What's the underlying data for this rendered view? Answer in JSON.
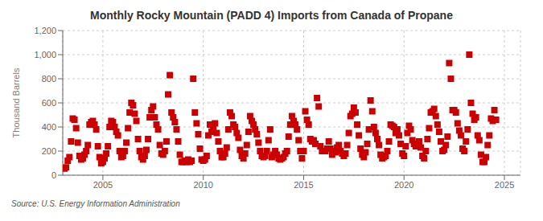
{
  "chart_data": {
    "type": "scatter",
    "title": "Monthly Rocky Mountain (PADD 4) Imports from Canada of Propane",
    "ylabel": "Thousand Barrels",
    "annotations": [
      "Source: U.S. Energy Information Administration"
    ],
    "color": "#cc0000",
    "marker": "square",
    "grid": true,
    "xlim": [
      2003.0,
      2025.8
    ],
    "xticks": [
      2005,
      2010,
      2015,
      2020,
      2025
    ],
    "ylim": [
      0,
      1200
    ],
    "yticks": [
      0,
      200,
      400,
      600,
      800,
      {
        "value": 1000,
        "label": "1,000"
      },
      {
        "value": 1200,
        "label": "1,200"
      }
    ],
    "x": [
      2003.083,
      2003.167,
      2003.25,
      2003.333,
      2003.417,
      2003.5,
      2003.583,
      2003.667,
      2003.75,
      2003.833,
      2003.917,
      2004.0,
      2004.083,
      2004.167,
      2004.25,
      2004.333,
      2004.417,
      2004.5,
      2004.583,
      2004.667,
      2004.75,
      2004.833,
      2004.917,
      2005.0,
      2005.083,
      2005.167,
      2005.25,
      2005.333,
      2005.417,
      2005.5,
      2005.583,
      2005.667,
      2005.75,
      2005.833,
      2005.917,
      2006.0,
      2006.083,
      2006.167,
      2006.25,
      2006.333,
      2006.417,
      2006.5,
      2006.583,
      2006.667,
      2006.75,
      2006.833,
      2006.917,
      2007.0,
      2007.083,
      2007.167,
      2007.25,
      2007.333,
      2007.417,
      2007.5,
      2007.583,
      2007.667,
      2007.75,
      2007.833,
      2007.917,
      2008.0,
      2008.083,
      2008.167,
      2008.25,
      2008.333,
      2008.417,
      2008.5,
      2008.583,
      2008.667,
      2008.75,
      2008.833,
      2008.917,
      2009.0,
      2009.083,
      2009.167,
      2009.25,
      2009.333,
      2009.417,
      2009.5,
      2009.583,
      2009.667,
      2009.75,
      2009.833,
      2009.917,
      2010.0,
      2010.083,
      2010.167,
      2010.25,
      2010.333,
      2010.417,
      2010.5,
      2010.583,
      2010.667,
      2010.75,
      2010.833,
      2010.917,
      2011.0,
      2011.083,
      2011.167,
      2011.25,
      2011.333,
      2011.417,
      2011.5,
      2011.583,
      2011.667,
      2011.75,
      2011.833,
      2011.917,
      2012.0,
      2012.083,
      2012.167,
      2012.25,
      2012.333,
      2012.417,
      2012.5,
      2012.583,
      2012.667,
      2012.75,
      2012.833,
      2012.917,
      2013.0,
      2013.083,
      2013.167,
      2013.25,
      2013.333,
      2013.417,
      2013.5,
      2013.583,
      2013.667,
      2013.75,
      2013.833,
      2013.917,
      2014.0,
      2014.083,
      2014.167,
      2014.25,
      2014.333,
      2014.417,
      2014.5,
      2014.583,
      2014.667,
      2014.75,
      2014.833,
      2014.917,
      2015.0,
      2015.083,
      2015.167,
      2015.25,
      2015.333,
      2015.417,
      2015.5,
      2015.583,
      2015.667,
      2015.75,
      2015.833,
      2015.917,
      2016.0,
      2016.083,
      2016.167,
      2016.25,
      2016.333,
      2016.417,
      2016.5,
      2016.583,
      2016.667,
      2016.75,
      2016.833,
      2016.917,
      2017.0,
      2017.083,
      2017.167,
      2017.25,
      2017.333,
      2017.417,
      2017.5,
      2017.583,
      2017.667,
      2017.75,
      2017.833,
      2017.917,
      2018.0,
      2018.083,
      2018.167,
      2018.25,
      2018.333,
      2018.417,
      2018.5,
      2018.583,
      2018.667,
      2018.75,
      2018.833,
      2018.917,
      2019.0,
      2019.083,
      2019.167,
      2019.25,
      2019.333,
      2019.417,
      2019.5,
      2019.583,
      2019.667,
      2019.75,
      2019.833,
      2019.917,
      2020.0,
      2020.083,
      2020.167,
      2020.25,
      2020.333,
      2020.417,
      2020.5,
      2020.583,
      2020.667,
      2020.75,
      2020.833,
      2020.917,
      2021.0,
      2021.083,
      2021.167,
      2021.25,
      2021.333,
      2021.417,
      2021.5,
      2021.583,
      2021.667,
      2021.75,
      2021.833,
      2021.917,
      2022.0,
      2022.083,
      2022.167,
      2022.25,
      2022.333,
      2022.417,
      2022.5,
      2022.583,
      2022.667,
      2022.75,
      2022.833,
      2022.917,
      2023.0,
      2023.083,
      2023.167,
      2023.25,
      2023.333,
      2023.417,
      2023.5,
      2023.583,
      2023.667,
      2023.75,
      2023.833,
      2023.917,
      2024.0,
      2024.083,
      2024.167,
      2024.25,
      2024.333,
      2024.417,
      2024.5,
      2024.583
    ],
    "values": [
      55,
      65,
      120,
      150,
      280,
      470,
      460,
      390,
      270,
      160,
      130,
      140,
      170,
      200,
      250,
      420,
      440,
      450,
      420,
      380,
      240,
      150,
      100,
      110,
      140,
      180,
      240,
      400,
      450,
      440,
      400,
      360,
      330,
      200,
      150,
      160,
      200,
      270,
      390,
      520,
      600,
      580,
      510,
      450,
      300,
      200,
      150,
      130,
      160,
      210,
      300,
      480,
      540,
      570,
      480,
      420,
      380,
      250,
      180,
      170,
      200,
      280,
      670,
      830,
      520,
      480,
      440,
      380,
      280,
      170,
      110,
      110,
      120,
      110,
      130,
      110,
      120,
      800,
      520,
      430,
      340,
      220,
      130,
      120,
      130,
      160,
      330,
      420,
      360,
      400,
      430,
      350,
      280,
      200,
      150,
      150,
      180,
      230,
      380,
      520,
      490,
      420,
      400,
      350,
      310,
      210,
      160,
      140,
      180,
      250,
      360,
      490,
      450,
      420,
      380,
      340,
      270,
      200,
      160,
      150,
      160,
      200,
      290,
      380,
      150,
      170,
      200,
      170,
      140,
      130,
      140,
      150,
      180,
      200,
      320,
      420,
      490,
      450,
      420,
      380,
      290,
      200,
      140,
      200,
      530,
      460,
      420,
      300,
      280,
      290,
      260,
      640,
      570,
      240,
      200,
      200,
      200,
      220,
      280,
      220,
      170,
      200,
      190,
      230,
      250,
      200,
      180,
      160,
      180,
      250,
      350,
      490,
      510,
      560,
      520,
      420,
      330,
      220,
      170,
      150,
      190,
      260,
      380,
      620,
      530,
      400,
      350,
      300,
      250,
      170,
      140,
      150,
      160,
      200,
      280,
      420,
      410,
      400,
      350,
      380,
      330,
      260,
      180,
      160,
      240,
      350,
      410,
      380,
      290,
      260,
      240,
      250,
      280,
      230,
      160,
      140,
      200,
      300,
      390,
      520,
      530,
      550,
      490,
      420,
      360,
      280,
      200,
      210,
      250,
      320,
      930,
      800,
      540,
      540,
      520,
      430,
      370,
      330,
      220,
      200,
      280,
      380,
      1000,
      600,
      510,
      460,
      480,
      330,
      290,
      170,
      110,
      110,
      150,
      250,
      330,
      470,
      450,
      540,
      460
    ]
  }
}
